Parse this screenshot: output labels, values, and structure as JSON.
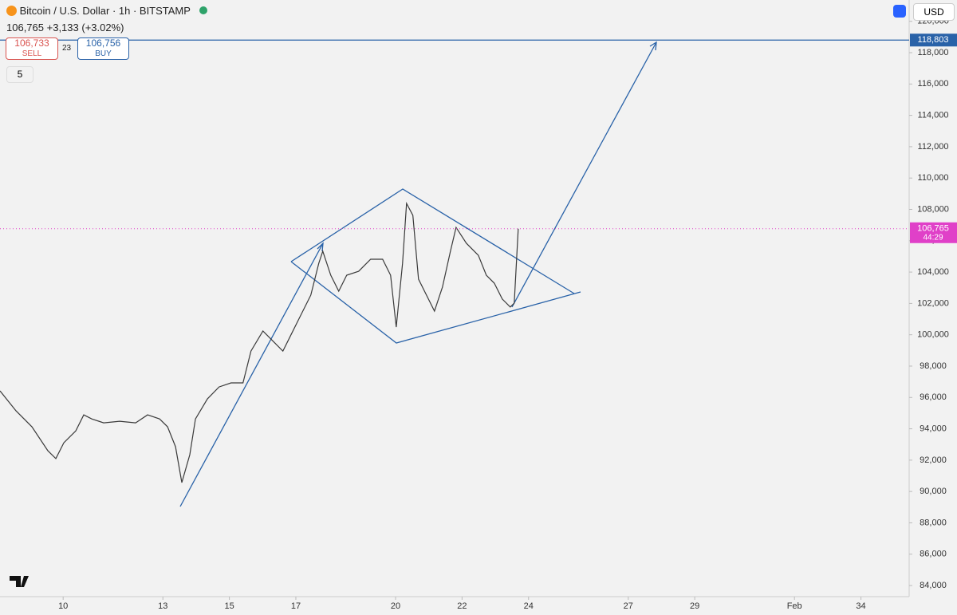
{
  "header": {
    "title": "Bitcoin / U.S. Dollar · 1h · BITSTAMP",
    "last": "106,765",
    "change": "+3,133 (+3.02%)",
    "sell_price": "106,733",
    "sell": "SELL",
    "spread": "23",
    "buy_price": "106,756",
    "buy": "BUY",
    "indicators": "5",
    "currency": "USD"
  },
  "chart_data": {
    "type": "line",
    "color": "#3a3a3a",
    "x": [
      8.1,
      8.58,
      9.06,
      9.54,
      9.78,
      10.02,
      10.38,
      10.62,
      10.86,
      11.22,
      11.7,
      12.18,
      12.54,
      12.9,
      13.14,
      13.38,
      13.57,
      13.81,
      13.98,
      14.34,
      14.69,
      15.05,
      15.41,
      15.65,
      16.01,
      16.37,
      16.61,
      16.85,
      17.09,
      17.45,
      17.69,
      17.81,
      18.05,
      18.29,
      18.53,
      18.89,
      19.25,
      19.61,
      19.85,
      20.02,
      20.21,
      20.33,
      20.52,
      20.69,
      20.93,
      21.17,
      21.41,
      21.65,
      21.82,
      22.13,
      22.49,
      22.73,
      22.97,
      23.21,
      23.45,
      23.57,
      23.69
    ],
    "values": [
      96420,
      95150,
      94130,
      92600,
      92100,
      93110,
      93870,
      94890,
      94630,
      94380,
      94480,
      94380,
      94890,
      94630,
      94130,
      92860,
      90570,
      92350,
      94630,
      95910,
      96670,
      96930,
      96930,
      98960,
      100240,
      99470,
      98960,
      99980,
      101000,
      102530,
      104560,
      105330,
      103800,
      102780,
      103800,
      104050,
      104820,
      104820,
      103800,
      100490,
      104560,
      108380,
      107620,
      103550,
      102530,
      101510,
      103040,
      105330,
      106850,
      105840,
      105070,
      103800,
      103290,
      102280,
      101770,
      102020,
      106765
    ],
    "xlim": [
      8.1,
      35.45
    ],
    "xticks": [
      10,
      13,
      15,
      17,
      20,
      22,
      24,
      27,
      29,
      {
        "value": 32,
        "label": "Feb"
      },
      34
    ],
    "ylim": [
      83290,
      121360
    ],
    "yticks": [
      {
        "value": 84000,
        "label": "84,000"
      },
      {
        "value": 86000,
        "label": "86,000"
      },
      {
        "value": 88000,
        "label": "88,000"
      },
      {
        "value": 90000,
        "label": "90,000"
      },
      {
        "value": 92000,
        "label": "92,000"
      },
      {
        "value": 94000,
        "label": "94,000"
      },
      {
        "value": 96000,
        "label": "96,000"
      },
      {
        "value": 98000,
        "label": "98,000"
      },
      {
        "value": 100000,
        "label": "100,000"
      },
      {
        "value": 102000,
        "label": "102,000"
      },
      {
        "value": 104000,
        "label": "104,000"
      },
      {
        "value": 106000,
        "label": "106,000"
      },
      {
        "value": 108000,
        "label": "108,000"
      },
      {
        "value": 110000,
        "label": "110,000"
      },
      {
        "value": 112000,
        "label": "112,000"
      },
      {
        "value": 114000,
        "label": "114,000"
      },
      {
        "value": 116000,
        "label": "116,000"
      },
      {
        "value": 118000,
        "label": "118,000"
      },
      {
        "value": 120000,
        "label": "120,000"
      }
    ],
    "price_line": {
      "value": 118803,
      "label": "118,803",
      "color": "#2962a8"
    },
    "current_price": {
      "value": 106765,
      "label": "106,765",
      "countdown": "44:29",
      "color": "#e040c8"
    }
  }
}
